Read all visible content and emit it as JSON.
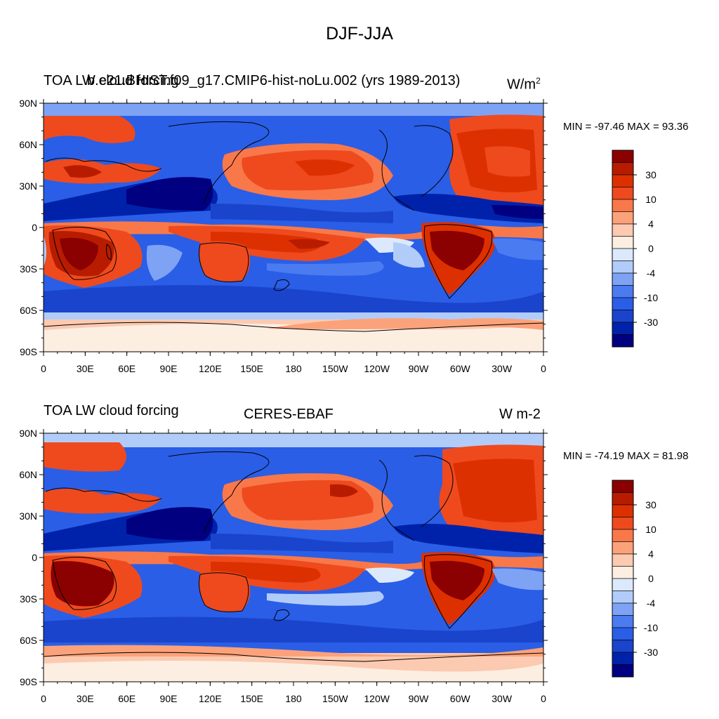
{
  "title": "DJF-JJA",
  "colors": {
    "levels": [
      "#000080",
      "#0022aa",
      "#1a44cc",
      "#2a5ee6",
      "#4a7bf0",
      "#7ea3f5",
      "#b2ccfa",
      "#dce9fc",
      "#fdeee2",
      "#fccab0",
      "#fca27a",
      "#f9784a",
      "#ee4a1e",
      "#dd3000",
      "#b81c00",
      "#8b0000"
    ]
  },
  "colorbar_labels": [
    "30",
    "10",
    "4",
    "0",
    "-4",
    "-10",
    "-30"
  ],
  "panels": [
    {
      "left_title": "TOA LW cloud forcing",
      "center_title": "b.e21.BHIST.f09_g17.CMIP6-hist-noLu.002 (yrs 1989-2013)",
      "right_title": "W/m",
      "right_title_sup": "2",
      "min_max": "MIN = -97.46 MAX =  93.36"
    },
    {
      "left_title": "TOA LW cloud forcing",
      "center_title": "CERES-EBAF",
      "right_title": "W m-2",
      "right_title_sup": "",
      "min_max": "MIN = -74.19 MAX =  81.98"
    }
  ],
  "lat_ticks": [
    "90N",
    "60N",
    "30N",
    "0",
    "30S",
    "60S",
    "90S"
  ],
  "lon_ticks": [
    "0",
    "30E",
    "60E",
    "90E",
    "120E",
    "150E",
    "180",
    "150W",
    "120W",
    "90W",
    "60W",
    "30W",
    "0"
  ]
}
